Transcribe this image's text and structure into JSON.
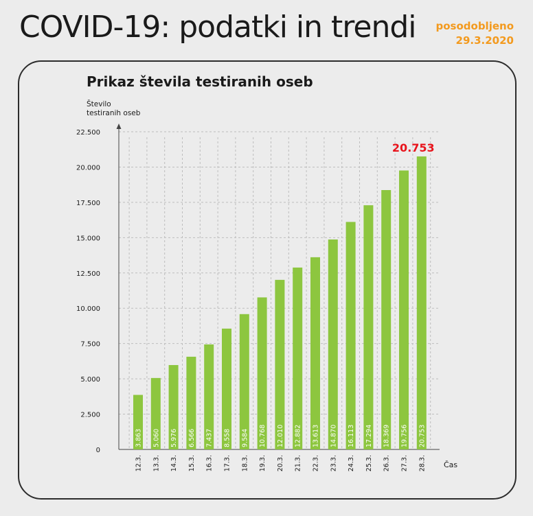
{
  "header": {
    "title": "COVID-19: podatki in trendi",
    "updated_label": "posodobljeno",
    "updated_date": "29.3.2020"
  },
  "colors": {
    "bar": "#8dc63f",
    "highlight": "#e8141c",
    "accent": "#f39a1e",
    "grid": "#bdbdbd"
  },
  "chart_data": {
    "type": "bar",
    "title": "Prikaz števila testiranih oseb",
    "ylabel": "Število testiranih oseb",
    "ylabel_lines": [
      "Število",
      "testiranih oseb"
    ],
    "xlabel": "Čas",
    "ylim": [
      0,
      22500
    ],
    "yticks": [
      0,
      2500,
      5000,
      7500,
      10000,
      12500,
      15000,
      17500,
      20000,
      22500
    ],
    "ytick_labels": [
      "0",
      "2.500",
      "5.000",
      "7.500",
      "10.000",
      "12.500",
      "15.000",
      "17.500",
      "20.000",
      "22.500"
    ],
    "categories": [
      "12.3.",
      "13.3.",
      "14.3.",
      "15.3.",
      "16.3.",
      "17.3.",
      "18.3.",
      "19.3.",
      "20.3.",
      "21.3.",
      "22.3.",
      "23.3.",
      "24.3.",
      "25.3.",
      "26.3.",
      "27.3.",
      "28.3."
    ],
    "values": [
      3863,
      5060,
      5976,
      6566,
      7437,
      8558,
      9584,
      10768,
      12010,
      12882,
      13613,
      14870,
      16113,
      17294,
      18369,
      19756,
      20753
    ],
    "value_labels": [
      "3.863",
      "5.060",
      "5.976",
      "6.566",
      "7.437",
      "8.558",
      "9.584",
      "10.768",
      "12.010",
      "12.882",
      "13.613",
      "14.870",
      "16.113",
      "17.294",
      "18.369",
      "19.756",
      "20.753"
    ],
    "highlight_label": "20.753",
    "grid": true
  }
}
